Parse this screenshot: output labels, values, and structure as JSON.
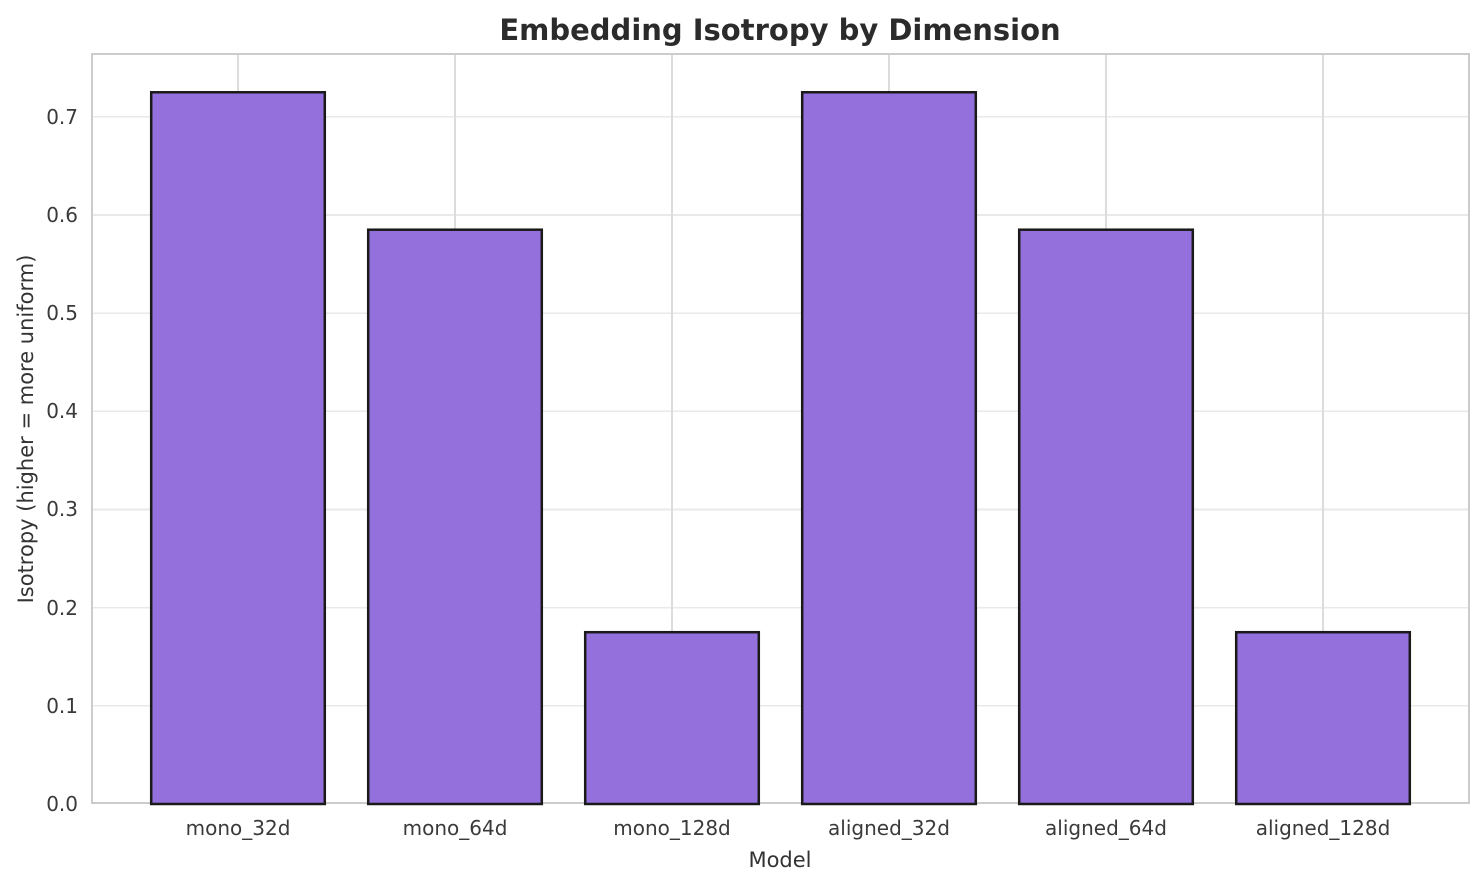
{
  "chart_data": {
    "type": "bar",
    "title": "Embedding Isotropy by Dimension",
    "xlabel": "Model",
    "ylabel": "Isotropy (higher = more uniform)",
    "categories": [
      "mono_32d",
      "mono_64d",
      "mono_128d",
      "aligned_32d",
      "aligned_64d",
      "aligned_128d"
    ],
    "values": [
      0.725,
      0.585,
      0.175,
      0.725,
      0.585,
      0.175
    ],
    "ylim": [
      0,
      0.765
    ],
    "yticks": [
      0.0,
      0.1,
      0.2,
      0.3,
      0.4,
      0.5,
      0.6,
      0.7
    ],
    "ytick_labels": [
      "0.0",
      "0.1",
      "0.2",
      "0.3",
      "0.4",
      "0.5",
      "0.6",
      "0.7"
    ],
    "grid": true,
    "legend_position": "none",
    "bar_width_fraction": 0.8,
    "colors": {
      "bar_fill": "#9370DB",
      "bar_edge": "#1a1a1a",
      "grid_h": "#e9e9e9",
      "grid_v": "#dcdcdc",
      "spine": "#cccccc",
      "tick_text": "#3a3a3a",
      "label_text": "#333333",
      "title_text": "#2b2b2b",
      "background": "#ffffff"
    }
  }
}
